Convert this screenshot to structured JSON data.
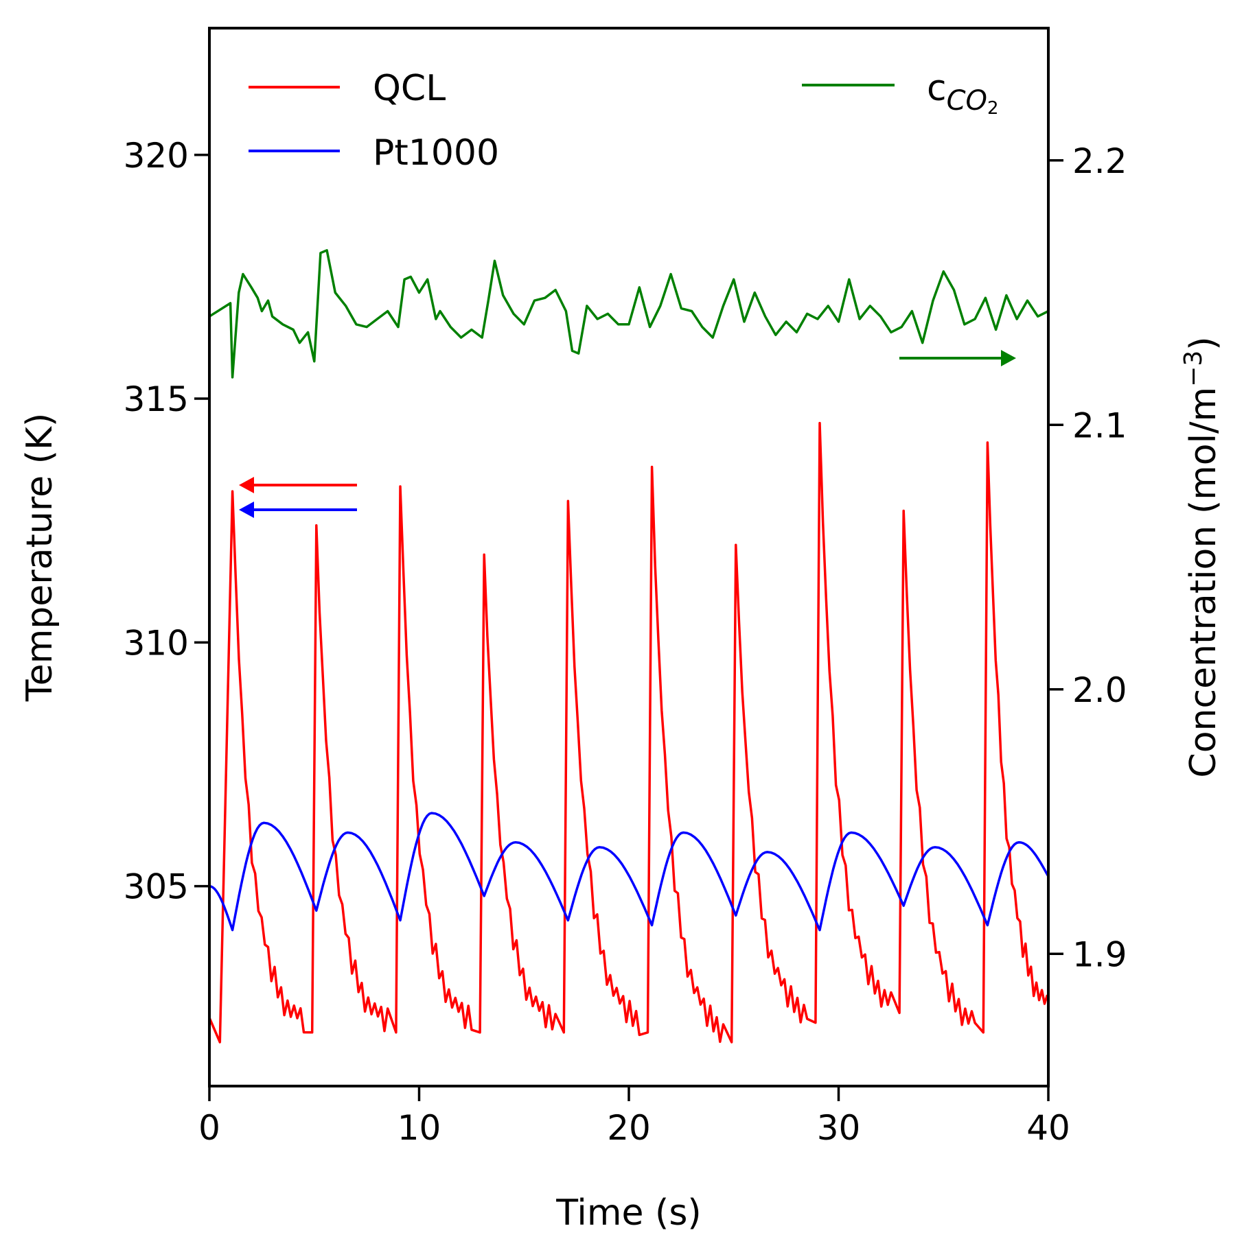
{
  "chart_data": {
    "type": "line",
    "xlabel": "Time (s)",
    "ylabel_left": "Temperature (K)",
    "ylabel_right_main": "Concentration (mol/m",
    "ylabel_right_sup": "−3",
    "ylabel_right_close": ")",
    "xlim": [
      0,
      40
    ],
    "ylim_left": [
      300.9,
      322.6
    ],
    "ylim_right": [
      1.85,
      2.25
    ],
    "x_ticks": [
      0,
      10,
      20,
      30,
      40
    ],
    "x_tick_labels": [
      "0",
      "10",
      "20",
      "30",
      "40"
    ],
    "y_left_ticks": [
      305,
      310,
      315,
      320
    ],
    "y_left_tick_labels": [
      "305",
      "310",
      "315",
      "320"
    ],
    "y_right_ticks": [
      1.9,
      2.0,
      2.1,
      2.2
    ],
    "y_right_tick_labels": [
      "1.9",
      "2.0",
      "2.1",
      "2.2"
    ],
    "grid": false,
    "legend_left_placement": "top-left",
    "legend_right_placement": "top-right",
    "series": [
      {
        "name": "QCL",
        "axis": "left",
        "color": "#ff0000",
        "arrow_direction": "left",
        "peak_times": [
          1.1,
          5.1,
          9.1,
          13.1,
          17.1,
          21.1,
          25.1,
          29.1,
          33.1,
          37.1
        ],
        "peak_values": [
          313.1,
          312.4,
          313.2,
          311.8,
          312.9,
          313.6,
          312.0,
          314.5,
          312.7,
          314.1
        ],
        "trough_values": [
          302.0,
          302.0,
          302.0,
          302.0,
          302.0,
          301.8,
          302.2,
          302.4,
          302.0,
          302.1
        ],
        "baseline_start": 302.3
      },
      {
        "name": "Pt1000",
        "axis": "left",
        "color": "#0000ff",
        "arrow_direction": "left",
        "start_value": 305.0,
        "trough_times": [
          1.1,
          5.1,
          9.1,
          13.1,
          17.1,
          21.1,
          25.1,
          29.1,
          33.1,
          37.1
        ],
        "trough_values": [
          304.1,
          304.5,
          304.3,
          304.8,
          304.3,
          304.2,
          304.4,
          304.1,
          304.6,
          304.2
        ],
        "peak_times": [
          2.6,
          6.6,
          10.6,
          14.6,
          18.6,
          22.6,
          26.6,
          30.6,
          34.6,
          38.6
        ],
        "peak_values": [
          306.3,
          306.1,
          306.5,
          305.9,
          305.8,
          306.1,
          305.7,
          306.1,
          305.8,
          305.9
        ],
        "end_value": 305.2
      },
      {
        "name": "c",
        "name_sub": "CO",
        "name_sub2": "2",
        "axis": "right",
        "color": "#008000",
        "arrow_direction": "right",
        "x": [
          0,
          1,
          1.1,
          1.4,
          1.6,
          2.0,
          2.3,
          2.5,
          2.8,
          3.0,
          3.5,
          4.0,
          4.3,
          4.7,
          5.0,
          5.3,
          5.6,
          6.0,
          6.5,
          7.0,
          7.5,
          8.0,
          8.5,
          9.0,
          9.3,
          9.6,
          10.0,
          10.4,
          10.8,
          11.0,
          11.5,
          12.0,
          12.5,
          13.0,
          13.3,
          13.6,
          14.0,
          14.5,
          15.0,
          15.5,
          16.0,
          16.5,
          17.0,
          17.3,
          17.6,
          18.0,
          18.5,
          19.0,
          19.5,
          20.0,
          20.5,
          21.0,
          21.5,
          22.0,
          22.5,
          23.0,
          23.5,
          24.0,
          24.5,
          25.0,
          25.5,
          26.0,
          26.5,
          27.0,
          27.5,
          28.0,
          28.5,
          29.0,
          29.5,
          30.0,
          30.5,
          31.0,
          31.5,
          32.0,
          32.5,
          33.0,
          33.5,
          34.0,
          34.5,
          35.0,
          35.5,
          36.0,
          36.5,
          37.0,
          37.5,
          38.0,
          38.5,
          39.0,
          39.5,
          40.0
        ],
        "y": [
          2.141,
          2.146,
          2.118,
          2.15,
          2.157,
          2.152,
          2.148,
          2.143,
          2.147,
          2.141,
          2.138,
          2.136,
          2.131,
          2.135,
          2.124,
          2.165,
          2.166,
          2.15,
          2.145,
          2.138,
          2.137,
          2.14,
          2.143,
          2.137,
          2.155,
          2.156,
          2.15,
          2.155,
          2.14,
          2.143,
          2.137,
          2.133,
          2.136,
          2.133,
          2.147,
          2.162,
          2.149,
          2.142,
          2.138,
          2.147,
          2.148,
          2.151,
          2.143,
          2.128,
          2.127,
          2.145,
          2.14,
          2.142,
          2.138,
          2.138,
          2.152,
          2.137,
          2.145,
          2.157,
          2.144,
          2.143,
          2.137,
          2.133,
          2.145,
          2.155,
          2.139,
          2.15,
          2.141,
          2.134,
          2.139,
          2.135,
          2.142,
          2.14,
          2.145,
          2.139,
          2.155,
          2.14,
          2.145,
          2.141,
          2.135,
          2.137,
          2.143,
          2.131,
          2.147,
          2.158,
          2.151,
          2.138,
          2.14,
          2.148,
          2.136,
          2.149,
          2.14,
          2.147,
          2.141,
          2.143
        ]
      }
    ]
  }
}
